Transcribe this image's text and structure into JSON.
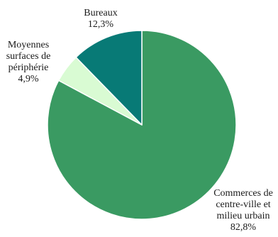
{
  "chart_data": {
    "type": "pie",
    "title": "",
    "start_angle_deg": 0,
    "direction": "clockwise",
    "slices": [
      {
        "name": "Commerces de centre-ville et milieu urbain",
        "value": 82.8,
        "value_label": "82,8%",
        "label_lines": [
          "Commerces de",
          "centre-ville et",
          "milieu urbain"
        ],
        "color": "#3a9a62"
      },
      {
        "name": "Moyennes surfaces de périphérie",
        "value": 4.9,
        "value_label": "4,9%",
        "label_lines": [
          "Moyennes",
          "surfaces de",
          "périphérie"
        ],
        "color": "#d9fbd3"
      },
      {
        "name": "Bureaux",
        "value": 12.3,
        "value_label": "12,3%",
        "label_lines": [
          "Bureaux"
        ],
        "color": "#087a76"
      }
    ]
  }
}
